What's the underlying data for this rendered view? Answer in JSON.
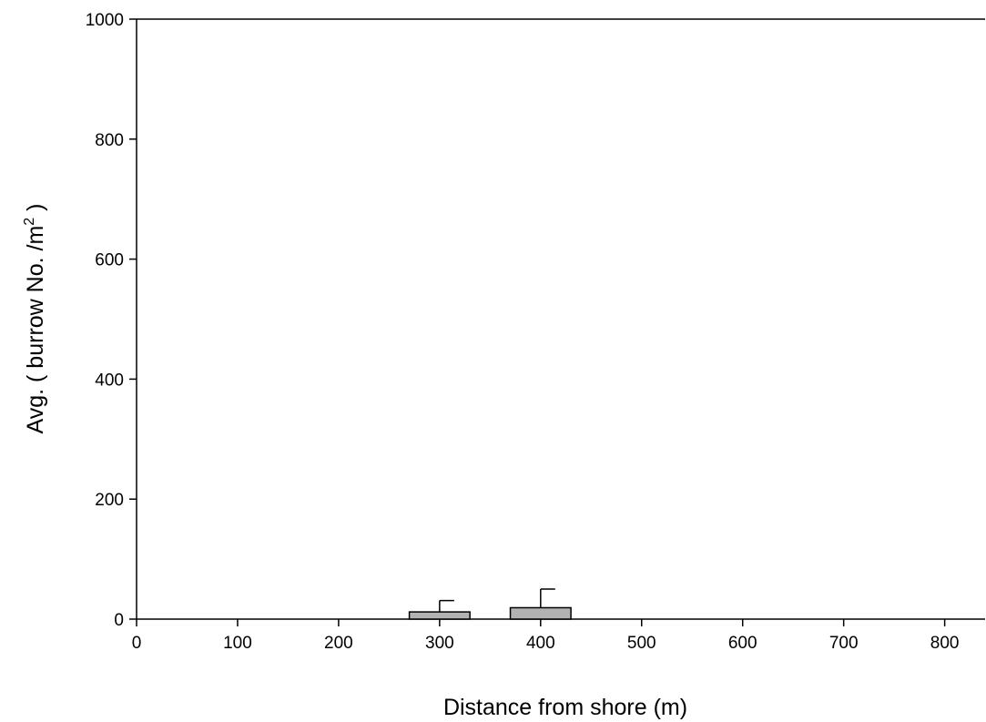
{
  "chart_data": {
    "type": "bar",
    "title": "",
    "xlabel": "Distance from shore (m)",
    "ylabel": {
      "main": "Avg. ( burrow No. /m",
      "superscript": "2",
      "close": " )"
    },
    "xlim": [
      0,
      840
    ],
    "ylim": [
      0,
      1000
    ],
    "x_ticks": [
      0,
      100,
      200,
      300,
      400,
      500,
      600,
      700,
      800
    ],
    "y_ticks": [
      0,
      200,
      400,
      600,
      800,
      1000
    ],
    "bar_width": 60,
    "bars": [
      {
        "x": 300,
        "value": 12,
        "error": 19
      },
      {
        "x": 400,
        "value": 19,
        "error": 31
      }
    ],
    "bar_color": "#b3b3b3",
    "grid": false,
    "legend": "none"
  }
}
